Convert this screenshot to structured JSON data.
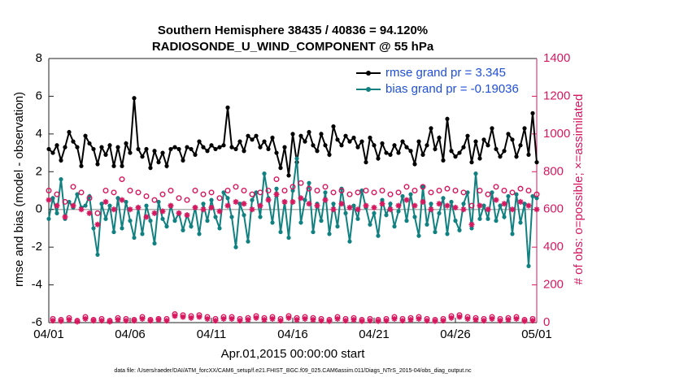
{
  "chart_data": {
    "type": "line",
    "title": "Southern Hemisphere 38435 / 40836 = 94.120%",
    "subtitle": "RADIOSONDE_U_WIND_COMPONENT @ 55 hPa",
    "xlabel": "Apr.01,2015 00:00:00 start",
    "ylabel": "rmse and bias (model - observation)",
    "y2label": "# of obs: o=possible; ×=assimilated",
    "footnote": "data file: /Users/raeder/DAI/ATM_forcXX/CAM6_setup/f.e21.FHIST_BGC.f09_025.CAM6assim.011/Diags_NTrS_2015-04/obs_diag_output.nc",
    "xlim": [
      0,
      30
    ],
    "ylim": [
      -6,
      8
    ],
    "y2lim": [
      0,
      1400
    ],
    "xticks": [
      {
        "value": 0,
        "label": "04/01"
      },
      {
        "value": 5,
        "label": "04/06"
      },
      {
        "value": 10,
        "label": "04/11"
      },
      {
        "value": 15,
        "label": "04/16"
      },
      {
        "value": 20,
        "label": "04/21"
      },
      {
        "value": 25,
        "label": "04/26"
      },
      {
        "value": 30,
        "label": "05/01"
      }
    ],
    "yticks": [
      -6,
      -4,
      -2,
      0,
      2,
      4,
      6,
      8
    ],
    "y2ticks": [
      0,
      200,
      400,
      600,
      800,
      1000,
      1200,
      1400
    ],
    "legend": "upper right",
    "x": [
      0,
      0.25,
      0.5,
      0.75,
      1,
      1.25,
      1.5,
      1.75,
      2,
      2.25,
      2.5,
      2.75,
      3,
      3.25,
      3.5,
      3.75,
      4,
      4.25,
      4.5,
      4.75,
      5,
      5.25,
      5.5,
      5.75,
      6,
      6.25,
      6.5,
      6.75,
      7,
      7.25,
      7.5,
      7.75,
      8,
      8.25,
      8.5,
      8.75,
      9,
      9.25,
      9.5,
      9.75,
      10,
      10.25,
      10.5,
      10.75,
      11,
      11.25,
      11.5,
      11.75,
      12,
      12.25,
      12.5,
      12.75,
      13,
      13.25,
      13.5,
      13.75,
      14,
      14.25,
      14.5,
      14.75,
      15,
      15.25,
      15.5,
      15.75,
      16,
      16.25,
      16.5,
      16.75,
      17,
      17.25,
      17.5,
      17.75,
      18,
      18.25,
      18.5,
      18.75,
      19,
      19.25,
      19.5,
      19.75,
      20,
      20.25,
      20.5,
      20.75,
      21,
      21.25,
      21.5,
      21.75,
      22,
      22.25,
      22.5,
      22.75,
      23,
      23.25,
      23.5,
      23.75,
      24,
      24.25,
      24.5,
      24.75,
      25,
      25.25,
      25.5,
      25.75,
      26,
      26.25,
      26.5,
      26.75,
      27,
      27.25,
      27.5,
      27.75,
      28,
      28.25,
      28.5,
      28.75,
      29,
      29.25,
      29.5,
      29.75,
      30
    ],
    "series": [
      {
        "name": "rmse grand pr = 3.345",
        "color": "#000000",
        "marker": "dot",
        "axis": "y",
        "values": [
          3.2,
          3.0,
          3.4,
          2.6,
          3.3,
          4.1,
          3.6,
          3.3,
          2.3,
          3.9,
          3.5,
          3.2,
          2.4,
          3.3,
          2.9,
          3.4,
          2.3,
          3.3,
          2.3,
          3.5,
          3.0,
          5.9,
          3.2,
          2.8,
          3.2,
          2.2,
          3.1,
          2.5,
          3.0,
          2.3,
          3.2,
          3.3,
          3.2,
          2.6,
          3.3,
          3.2,
          2.9,
          3.6,
          3.3,
          3.1,
          3.4,
          3.2,
          3.3,
          3.4,
          5.4,
          3.3,
          3.2,
          3.6,
          3.1,
          3.9,
          3.7,
          3.9,
          3.3,
          3.6,
          3.2,
          3.8,
          3.0,
          2.2,
          3.3,
          1.8,
          4.0,
          2.5,
          3.9,
          3.6,
          4.1,
          3.4,
          3.1,
          4.0,
          3.4,
          2.9,
          4.4,
          3.7,
          3.4,
          3.9,
          3.6,
          3.8,
          3.3,
          3.6,
          2.5,
          3.8,
          3.4,
          2.7,
          3.5,
          3.0,
          2.9,
          3.4,
          3.0,
          3.6,
          3.3,
          3.1,
          2.4,
          3.6,
          2.9,
          3.4,
          4.3,
          3.2,
          3.8,
          2.6,
          4.8,
          3.1,
          2.8,
          3.0,
          3.3,
          3.9,
          2.5,
          3.6,
          2.7,
          3.7,
          3.4,
          4.3,
          3.2,
          2.8,
          3.1,
          4.0,
          3.7,
          2.8,
          3.4,
          4.3,
          2.9,
          5.1,
          2.5
        ]
      },
      {
        "name": "bias grand pr = -0.19036",
        "color": "#108080",
        "marker": "dot",
        "axis": "y",
        "values": [
          -0.5,
          0.6,
          -0.2,
          1.6,
          -0.5,
          0.4,
          0.1,
          0.8,
          0.1,
          0.2,
          0.7,
          -1.0,
          -2.4,
          0.3,
          -0.5,
          0.2,
          -1.2,
          0.6,
          -1.0,
          0.4,
          -0.6,
          -1.5,
          0.1,
          -1.3,
          0.2,
          -0.6,
          -1.8,
          0.4,
          -0.5,
          -0.9,
          0.2,
          -0.6,
          -0.2,
          -1.1,
          -0.3,
          -0.9,
          0.1,
          -1.3,
          0.3,
          -0.6,
          0.5,
          -0.4,
          -1.0,
          0.9,
          0.6,
          -0.4,
          -2.0,
          0.3,
          -0.3,
          -1.7,
          0.5,
          0.9,
          -0.4,
          1.9,
          0.6,
          -0.7,
          1.1,
          -1.2,
          0.4,
          -1.5,
          1.0,
          2.7,
          -0.7,
          0.5,
          1.4,
          -1.2,
          0.3,
          -0.6,
          0.9,
          -1.3,
          0.3,
          -0.9,
          1.1,
          -0.2,
          -1.7,
          0.2,
          -0.5,
          1.0,
          0.1,
          -0.8,
          -0.2,
          -1.4,
          0.5,
          -0.3,
          0.3,
          -0.9,
          -0.1,
          0.7,
          -0.6,
          0.8,
          -0.4,
          -1.4,
          1.2,
          -0.8,
          0.3,
          -1.2,
          -0.2,
          0.6,
          -1.3,
          0.4,
          -0.6,
          -1.1,
          0.3,
          0.9,
          -1.0,
          1.9,
          -0.5,
          0.2,
          -0.5,
          0.9,
          -0.6,
          0.2,
          -0.4,
          0.7,
          -1.3,
          0.8,
          -0.7,
          0.3,
          -3.0,
          0.7,
          0.6
        ]
      },
      {
        "color": "#d6185f",
        "marker": "o",
        "axis": "y2",
        "values": [
          700,
          20,
          680,
          15,
          640,
          25,
          720,
          10,
          690,
          30,
          660,
          15,
          580,
          20,
          700,
          10,
          690,
          25,
          760,
          20,
          700,
          15,
          690,
          30,
          670,
          15,
          650,
          20,
          680,
          20,
          700,
          45,
          660,
          40,
          650,
          35,
          700,
          40,
          680,
          30,
          690,
          20,
          660,
          30,
          700,
          30,
          720,
          20,
          700,
          25,
          680,
          35,
          690,
          25,
          700,
          30,
          760,
          20,
          700,
          35,
          720,
          25,
          740,
          30,
          710,
          25,
          700,
          20,
          720,
          15,
          690,
          30,
          700,
          20,
          680,
          25,
          690,
          15,
          700,
          20,
          690,
          15,
          700,
          20,
          680,
          30,
          690,
          20,
          720,
          25,
          700,
          30,
          720,
          20,
          690,
          15,
          700,
          20,
          710,
          35,
          700,
          40,
          690,
          30,
          620,
          25,
          700,
          20,
          680,
          30,
          720,
          20,
          700,
          25,
          690,
          30,
          710,
          15,
          700,
          20,
          680
        ]
      },
      {
        "color": "#d6185f",
        "marker": "*",
        "axis": "y2",
        "values": [
          650,
          10,
          620,
          8,
          560,
          15,
          620,
          5,
          600,
          20,
          580,
          10,
          520,
          10,
          640,
          5,
          600,
          15,
          650,
          10,
          600,
          10,
          610,
          20,
          560,
          10,
          580,
          15,
          590,
          10,
          620,
          35,
          580,
          30,
          570,
          25,
          610,
          30,
          600,
          20,
          610,
          10,
          590,
          20,
          620,
          20,
          640,
          10,
          630,
          15,
          600,
          25,
          620,
          15,
          650,
          20,
          680,
          10,
          640,
          25,
          640,
          15,
          660,
          20,
          630,
          15,
          620,
          10,
          650,
          8,
          600,
          20,
          630,
          10,
          610,
          15,
          600,
          8,
          620,
          10,
          610,
          8,
          630,
          10,
          600,
          20,
          620,
          10,
          650,
          15,
          620,
          20,
          640,
          10,
          600,
          8,
          630,
          10,
          620,
          25,
          610,
          30,
          600,
          20,
          520,
          15,
          620,
          10,
          600,
          20,
          650,
          10,
          630,
          15,
          600,
          20,
          640,
          8,
          620,
          10,
          600
        ]
      }
    ]
  }
}
